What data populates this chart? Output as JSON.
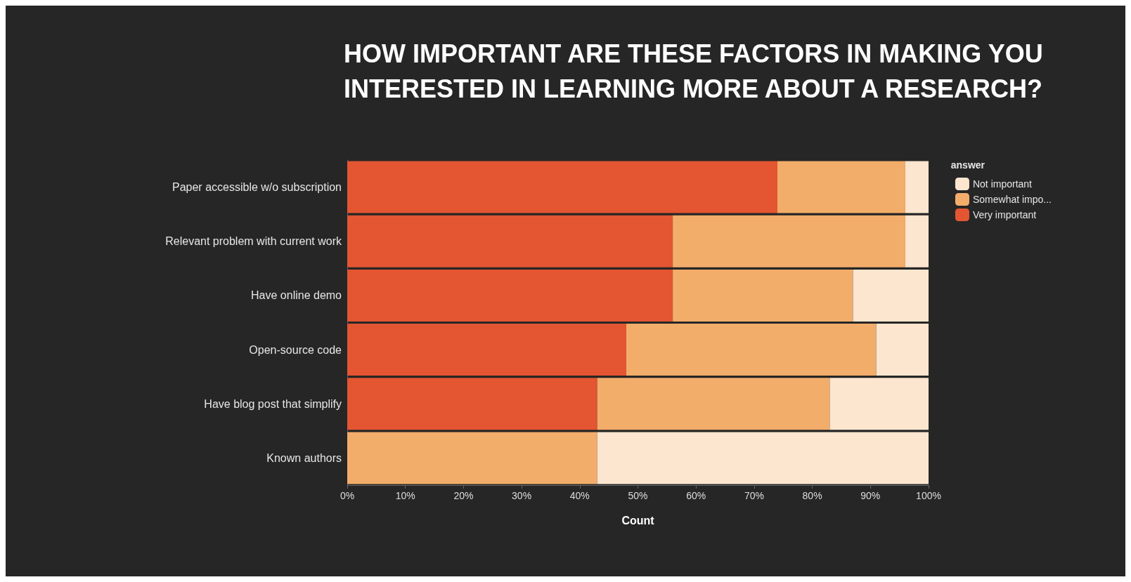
{
  "chart_data": {
    "type": "bar",
    "orientation": "horizontal",
    "stacked": true,
    "title": "HOW IMPORTANT ARE THESE FACTORS IN MAKING YOU\nINTERESTED IN LEARNING MORE ABOUT A RESEARCH?",
    "xlabel": "Count",
    "legend_title": "answer",
    "legend": "top right",
    "grid": false,
    "categories": [
      "Paper accessible w/o subscription",
      "Relevant problem with current work",
      "Have online demo",
      "Open-source code",
      "Have blog post that simplify",
      "Known authors"
    ],
    "series": [
      {
        "name": "Very important",
        "color": "#e45532",
        "values": [
          74,
          56,
          56,
          48,
          43,
          0
        ]
      },
      {
        "name": "Somewhat impo...",
        "color": "#f3ad6b",
        "values": [
          22,
          40,
          31,
          43,
          40,
          43
        ]
      },
      {
        "name": "Not important",
        "color": "#fce6cf",
        "values": [
          4,
          4,
          13,
          9,
          17,
          57
        ]
      }
    ],
    "xlim": [
      0,
      100
    ],
    "xticks": [
      {
        "value": 0,
        "label": "0%"
      },
      {
        "value": 10,
        "label": "10%"
      },
      {
        "value": 20,
        "label": "20%"
      },
      {
        "value": 30,
        "label": "30%"
      },
      {
        "value": 40,
        "label": "40%"
      },
      {
        "value": 50,
        "label": "50%"
      },
      {
        "value": 60,
        "label": "60%"
      },
      {
        "value": 70,
        "label": "70%"
      },
      {
        "value": 80,
        "label": "80%"
      },
      {
        "value": 90,
        "label": "90%"
      },
      {
        "value": 100,
        "label": "100%"
      }
    ]
  }
}
